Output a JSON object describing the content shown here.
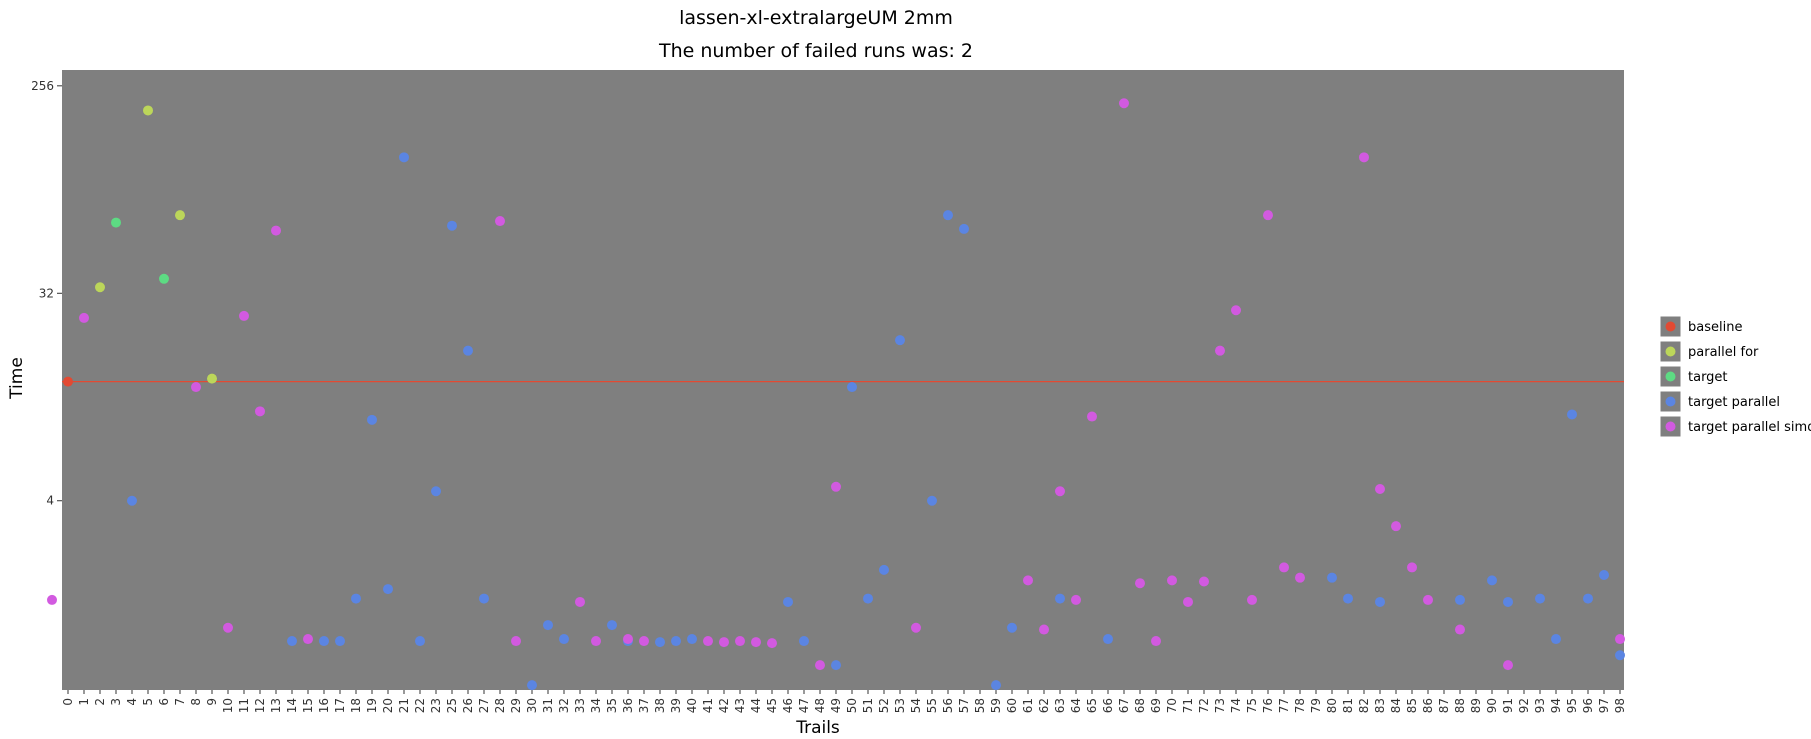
{
  "chart_data": {
    "type": "scatter",
    "title": "lassen-xl-extralargeUM 2mm",
    "subtitle": "The number of failed runs was: 2",
    "xlabel": "Trails",
    "ylabel": "Time",
    "y_scale": "log2",
    "ylim": [
      0.6,
      300
    ],
    "yticks": [
      4,
      32,
      256
    ],
    "ytick_labels": [
      "4",
      "32",
      "256"
    ],
    "x_categories": [
      "0",
      "1",
      "2",
      "3",
      "4",
      "5",
      "6",
      "7",
      "8",
      "9",
      "10",
      "11",
      "12",
      "13",
      "14",
      "15",
      "16",
      "17",
      "18",
      "19",
      "20",
      "21",
      "22",
      "23",
      "25",
      "26",
      "27",
      "28",
      "29",
      "30",
      "31",
      "32",
      "33",
      "34",
      "35",
      "36",
      "37",
      "38",
      "39",
      "40",
      "41",
      "42",
      "43",
      "44",
      "45",
      "46",
      "47",
      "48",
      "49",
      "50",
      "51",
      "52",
      "53",
      "54",
      "55",
      "56",
      "57",
      "58",
      "59",
      "60",
      "61",
      "62",
      "63",
      "64",
      "65",
      "66",
      "67",
      "68",
      "69",
      "70",
      "71",
      "72",
      "73",
      "74",
      "75",
      "76",
      "77",
      "78",
      "79",
      "80",
      "81",
      "82",
      "83",
      "84",
      "85",
      "86",
      "87",
      "88",
      "89",
      "90",
      "91",
      "92",
      "93",
      "94",
      "95",
      "96",
      "97",
      "98"
    ],
    "baseline_value": 13.2,
    "legend": [
      "baseline",
      "parallel for",
      "target",
      "target parallel",
      "target parallel simd"
    ],
    "colors": {
      "baseline": "#e24a33",
      "parallel for": "#bcd65a",
      "target": "#5ddb83",
      "target parallel": "#5b85e2",
      "target parallel simd": "#d25ae0"
    },
    "series": [
      {
        "name": "baseline",
        "points": [
          [
            "0",
            13.2
          ]
        ]
      },
      {
        "name": "parallel for",
        "points": [
          [
            "2",
            34
          ],
          [
            "5",
            200
          ],
          [
            "7",
            70
          ],
          [
            "9",
            13.6
          ]
        ]
      },
      {
        "name": "target",
        "points": [
          [
            "3",
            65
          ],
          [
            "6",
            37
          ]
        ]
      },
      {
        "name": "target parallel",
        "points": [
          [
            "4",
            4
          ],
          [
            "14",
            0.98
          ],
          [
            "16",
            0.98
          ],
          [
            "17",
            0.98
          ],
          [
            "18",
            1.5
          ],
          [
            "19",
            9
          ],
          [
            "20",
            1.65
          ],
          [
            "21",
            125
          ],
          [
            "22",
            0.98
          ],
          [
            "23",
            4.4
          ],
          [
            "25",
            63
          ],
          [
            "26",
            18
          ],
          [
            "27",
            1.5
          ],
          [
            "30",
            0.63
          ],
          [
            "31",
            1.15
          ],
          [
            "32",
            1.0
          ],
          [
            "35",
            1.15
          ],
          [
            "36",
            0.98
          ],
          [
            "38",
            0.97
          ],
          [
            "39",
            0.98
          ],
          [
            "40",
            1.0
          ],
          [
            "46",
            1.45
          ],
          [
            "47",
            0.98
          ],
          [
            "49",
            0.77
          ],
          [
            "50",
            12.5
          ],
          [
            "51",
            1.5
          ],
          [
            "52",
            2.0
          ],
          [
            "53",
            20
          ],
          [
            "55",
            4.0
          ],
          [
            "56",
            70
          ],
          [
            "57",
            61
          ],
          [
            "59",
            0.63
          ],
          [
            "60",
            1.12
          ],
          [
            "63",
            1.5
          ],
          [
            "66",
            1.0
          ],
          [
            "80",
            1.85
          ],
          [
            "81",
            1.5
          ],
          [
            "83",
            1.45
          ],
          [
            "88",
            1.48
          ],
          [
            "90",
            1.8
          ],
          [
            "91",
            1.45
          ],
          [
            "93",
            1.5
          ],
          [
            "94",
            1.0
          ],
          [
            "95",
            9.5
          ],
          [
            "96",
            1.5
          ],
          [
            "97",
            1.9
          ],
          [
            "98",
            0.85
          ]
        ]
      },
      {
        "name": "target parallel simd",
        "points": [
          [
            "1",
            25
          ],
          [
            "8",
            12.5
          ],
          [
            "10",
            1.12
          ],
          [
            "11",
            25.5
          ],
          [
            "12",
            9.8
          ],
          [
            "13",
            60
          ],
          [
            "15",
            1.0
          ],
          [
            "24",
            1.48
          ],
          [
            "28",
            66
          ],
          [
            "29",
            0.98
          ],
          [
            "33",
            1.45
          ],
          [
            "34",
            0.98
          ],
          [
            "36",
            1.0
          ],
          [
            "37",
            0.98
          ],
          [
            "41",
            0.98
          ],
          [
            "42",
            0.97
          ],
          [
            "43",
            0.98
          ],
          [
            "44",
            0.97
          ],
          [
            "45",
            0.96
          ],
          [
            "48",
            0.77
          ],
          [
            "49",
            4.6
          ],
          [
            "54",
            1.12
          ],
          [
            "61",
            1.8
          ],
          [
            "62",
            1.1
          ],
          [
            "63",
            4.4
          ],
          [
            "64",
            1.48
          ],
          [
            "65",
            9.3
          ],
          [
            "67",
            215
          ],
          [
            "68",
            1.75
          ],
          [
            "69",
            0.98
          ],
          [
            "70",
            1.8
          ],
          [
            "71",
            1.45
          ],
          [
            "72",
            1.78
          ],
          [
            "73",
            18
          ],
          [
            "74",
            27
          ],
          [
            "75",
            1.48
          ],
          [
            "76",
            70
          ],
          [
            "77",
            2.05
          ],
          [
            "78",
            1.85
          ],
          [
            "82",
            125
          ],
          [
            "83",
            4.5
          ],
          [
            "84",
            3.1
          ],
          [
            "85",
            2.05
          ],
          [
            "86",
            1.48
          ],
          [
            "88",
            1.1
          ],
          [
            "91",
            0.77
          ],
          [
            "98",
            1.0
          ]
        ]
      }
    ]
  }
}
